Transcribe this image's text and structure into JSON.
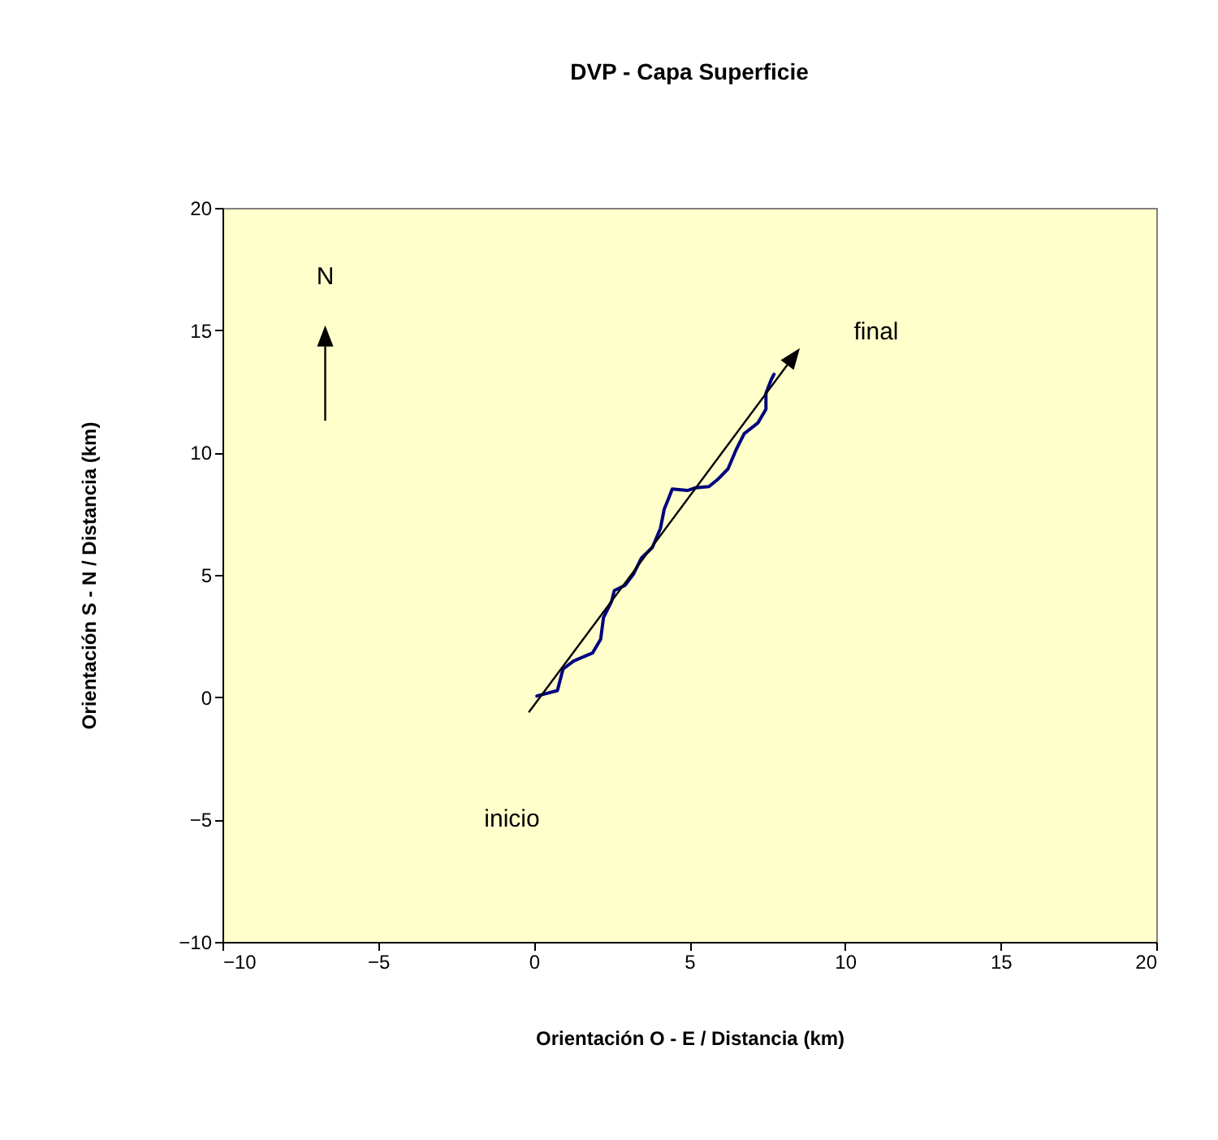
{
  "chart_data": {
    "type": "line",
    "title": "DVP - Capa Superficie",
    "xlabel": "Orientación O - E / Distancia (km)",
    "ylabel": "Orientación S - N / Distancia (km)",
    "xlim": [
      -10,
      20
    ],
    "ylim": [
      -10,
      20
    ],
    "xticks": [
      -10,
      -5,
      0,
      5,
      10,
      15,
      20
    ],
    "yticks": [
      -10,
      -5,
      0,
      5,
      10,
      15,
      20
    ],
    "grid": false,
    "series": [
      {
        "color": "#000080",
        "x": [
          0.1,
          0.76,
          0.94,
          1.28,
          1.89,
          2.15,
          2.24,
          2.5,
          2.59,
          2.94,
          3.2,
          3.46,
          3.81,
          4.07,
          4.19,
          4.33,
          4.45,
          4.94,
          5.2,
          5.63,
          5.9,
          6.24,
          6.5,
          6.76,
          7.2,
          7.46,
          7.46,
          7.63,
          7.72
        ],
        "values": [
          0.05,
          0.27,
          1.15,
          1.48,
          1.81,
          2.37,
          3.25,
          3.92,
          4.36,
          4.58,
          5.02,
          5.69,
          6.12,
          6.9,
          7.68,
          8.12,
          8.51,
          8.45,
          8.56,
          8.61,
          8.89,
          9.33,
          10.11,
          10.77,
          11.21,
          11.77,
          12.43,
          12.98,
          13.2
        ]
      }
    ],
    "annotations": [
      "N",
      "inicio",
      "final"
    ]
  }
}
